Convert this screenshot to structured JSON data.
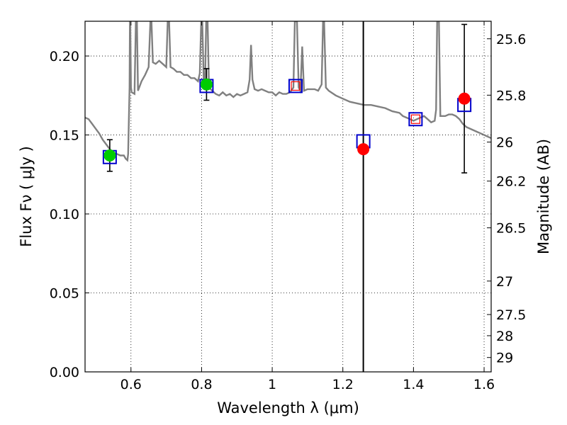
{
  "chart_data": {
    "type": "scatter",
    "xlabel": "Wavelength  λ (μm)",
    "ylabel": "Flux  Fν  ( μJy )",
    "ylabel_right": "Magnitude (AB)",
    "xlim": [
      0.47,
      1.62
    ],
    "ylim": [
      0.0,
      0.222
    ],
    "grid": true,
    "x_ticks": [
      {
        "value": 0.6,
        "label": "0.6"
      },
      {
        "value": 0.8,
        "label": "0.8"
      },
      {
        "value": 1.0,
        "label": "1"
      },
      {
        "value": 1.2,
        "label": "1.2"
      },
      {
        "value": 1.4,
        "label": "1.4"
      },
      {
        "value": 1.6,
        "label": "1.6"
      }
    ],
    "y_ticks": [
      {
        "value": 0.0,
        "label": "0.00"
      },
      {
        "value": 0.05,
        "label": "0.05"
      },
      {
        "value": 0.1,
        "label": "0.10"
      },
      {
        "value": 0.15,
        "label": "0.15"
      },
      {
        "value": 0.2,
        "label": "0.20"
      }
    ],
    "right_ticks": [
      {
        "flux": 0.2109,
        "label": "25.6"
      },
      {
        "flux": 0.1752,
        "label": "25.8"
      },
      {
        "flux": 0.1455,
        "label": "26"
      },
      {
        "flux": 0.1208,
        "label": "26.2"
      },
      {
        "flux": 0.0912,
        "label": "26.5"
      },
      {
        "flux": 0.0575,
        "label": "27"
      },
      {
        "flux": 0.0363,
        "label": "27.5"
      },
      {
        "flux": 0.0229,
        "label": "28"
      },
      {
        "flux": 0.0091,
        "label": "29"
      }
    ],
    "vertical_line_x": 1.258,
    "spectrum": {
      "color": "#808080",
      "points": [
        [
          0.47,
          0.161
        ],
        [
          0.48,
          0.16
        ],
        [
          0.49,
          0.157
        ],
        [
          0.5,
          0.154
        ],
        [
          0.51,
          0.151
        ],
        [
          0.52,
          0.147
        ],
        [
          0.53,
          0.144
        ],
        [
          0.54,
          0.141
        ],
        [
          0.55,
          0.139
        ],
        [
          0.56,
          0.138
        ],
        [
          0.57,
          0.137
        ],
        [
          0.58,
          0.137
        ],
        [
          0.585,
          0.135
        ],
        [
          0.59,
          0.134
        ],
        [
          0.592,
          0.138
        ],
        [
          0.596,
          0.18
        ],
        [
          0.597,
          0.222
        ],
        [
          0.598,
          0.222
        ],
        [
          0.6,
          0.18
        ],
        [
          0.602,
          0.177
        ],
        [
          0.61,
          0.176
        ],
        [
          0.614,
          0.222
        ],
        [
          0.617,
          0.222
        ],
        [
          0.62,
          0.178
        ],
        [
          0.63,
          0.184
        ],
        [
          0.64,
          0.188
        ],
        [
          0.65,
          0.193
        ],
        [
          0.655,
          0.222
        ],
        [
          0.658,
          0.222
        ],
        [
          0.662,
          0.196
        ],
        [
          0.67,
          0.195
        ],
        [
          0.68,
          0.197
        ],
        [
          0.69,
          0.195
        ],
        [
          0.7,
          0.193
        ],
        [
          0.704,
          0.222
        ],
        [
          0.708,
          0.222
        ],
        [
          0.712,
          0.193
        ],
        [
          0.72,
          0.192
        ],
        [
          0.73,
          0.19
        ],
        [
          0.74,
          0.19
        ],
        [
          0.75,
          0.188
        ],
        [
          0.76,
          0.188
        ],
        [
          0.77,
          0.186
        ],
        [
          0.78,
          0.186
        ],
        [
          0.79,
          0.184
        ],
        [
          0.795,
          0.189
        ],
        [
          0.799,
          0.222
        ],
        [
          0.802,
          0.222
        ],
        [
          0.806,
          0.185
        ],
        [
          0.81,
          0.184
        ],
        [
          0.813,
          0.222
        ],
        [
          0.817,
          0.222
        ],
        [
          0.821,
          0.18
        ],
        [
          0.83,
          0.178
        ],
        [
          0.84,
          0.176
        ],
        [
          0.85,
          0.175
        ],
        [
          0.86,
          0.177
        ],
        [
          0.87,
          0.175
        ],
        [
          0.88,
          0.176
        ],
        [
          0.89,
          0.174
        ],
        [
          0.9,
          0.176
        ],
        [
          0.91,
          0.175
        ],
        [
          0.92,
          0.176
        ],
        [
          0.93,
          0.177
        ],
        [
          0.936,
          0.185
        ],
        [
          0.94,
          0.207
        ],
        [
          0.944,
          0.185
        ],
        [
          0.95,
          0.179
        ],
        [
          0.96,
          0.178
        ],
        [
          0.97,
          0.179
        ],
        [
          0.98,
          0.178
        ],
        [
          0.99,
          0.177
        ],
        [
          1.0,
          0.177
        ],
        [
          1.01,
          0.175
        ],
        [
          1.02,
          0.177
        ],
        [
          1.03,
          0.176
        ],
        [
          1.04,
          0.176
        ],
        [
          1.05,
          0.177
        ],
        [
          1.06,
          0.18
        ],
        [
          1.064,
          0.222
        ],
        [
          1.07,
          0.222
        ],
        [
          1.075,
          0.18
        ],
        [
          1.08,
          0.178
        ],
        [
          1.085,
          0.206
        ],
        [
          1.09,
          0.178
        ],
        [
          1.1,
          0.179
        ],
        [
          1.11,
          0.179
        ],
        [
          1.12,
          0.179
        ],
        [
          1.13,
          0.178
        ],
        [
          1.14,
          0.182
        ],
        [
          1.144,
          0.222
        ],
        [
          1.147,
          0.222
        ],
        [
          1.152,
          0.18
        ],
        [
          1.16,
          0.178
        ],
        [
          1.18,
          0.175
        ],
        [
          1.2,
          0.173
        ],
        [
          1.22,
          0.171
        ],
        [
          1.24,
          0.17
        ],
        [
          1.26,
          0.169
        ],
        [
          1.28,
          0.169
        ],
        [
          1.3,
          0.168
        ],
        [
          1.32,
          0.167
        ],
        [
          1.34,
          0.165
        ],
        [
          1.36,
          0.164
        ],
        [
          1.37,
          0.162
        ],
        [
          1.38,
          0.161
        ],
        [
          1.39,
          0.16
        ],
        [
          1.4,
          0.159
        ],
        [
          1.41,
          0.16
        ],
        [
          1.42,
          0.161
        ],
        [
          1.43,
          0.162
        ],
        [
          1.44,
          0.16
        ],
        [
          1.45,
          0.158
        ],
        [
          1.46,
          0.159
        ],
        [
          1.464,
          0.166
        ],
        [
          1.467,
          0.222
        ],
        [
          1.472,
          0.222
        ],
        [
          1.476,
          0.162
        ],
        [
          1.49,
          0.162
        ],
        [
          1.5,
          0.163
        ],
        [
          1.51,
          0.163
        ],
        [
          1.52,
          0.162
        ],
        [
          1.53,
          0.16
        ],
        [
          1.54,
          0.157
        ],
        [
          1.55,
          0.155
        ],
        [
          1.56,
          0.154
        ],
        [
          1.57,
          0.153
        ],
        [
          1.58,
          0.152
        ],
        [
          1.59,
          0.151
        ],
        [
          1.6,
          0.15
        ],
        [
          1.61,
          0.149
        ],
        [
          1.62,
          0.148
        ]
      ]
    },
    "series": [
      {
        "marker": "square-open",
        "color": "#0000cc",
        "points": [
          {
            "x": 0.54,
            "y": 0.136
          },
          {
            "x": 0.814,
            "y": 0.181
          },
          {
            "x": 1.066,
            "y": 0.181
          },
          {
            "x": 1.258,
            "y": 0.146
          },
          {
            "x": 1.406,
            "y": 0.16
          },
          {
            "x": 1.544,
            "y": 0.169
          }
        ]
      },
      {
        "marker": "circle",
        "color": "#00cc00",
        "points": [
          {
            "x": 0.54,
            "y": 0.137
          },
          {
            "x": 0.814,
            "y": 0.182
          }
        ]
      },
      {
        "marker": "circle",
        "color": "#ff0000",
        "points": [
          {
            "x": 1.258,
            "y": 0.141
          },
          {
            "x": 1.544,
            "y": 0.173
          }
        ]
      },
      {
        "marker": "square-open",
        "color": "#ff0000",
        "small": true,
        "points": [
          {
            "x": 1.066,
            "y": 0.181
          },
          {
            "x": 1.406,
            "y": 0.16
          }
        ]
      }
    ],
    "error_bars": [
      {
        "x": 0.54,
        "y": 0.137,
        "low": 0.127,
        "high": 0.147
      },
      {
        "x": 0.814,
        "y": 0.182,
        "low": 0.172,
        "high": 0.192
      },
      {
        "x": 1.544,
        "y": 0.173,
        "low": 0.126,
        "high": 0.22
      }
    ]
  }
}
